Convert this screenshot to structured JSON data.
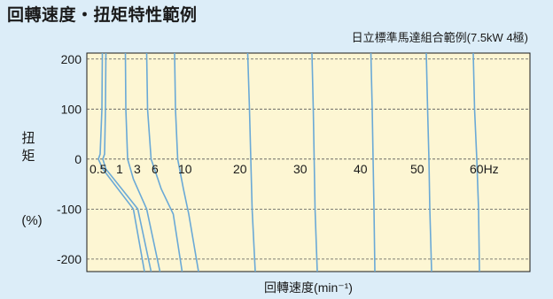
{
  "title": "回轉速度・扭矩特性範例",
  "chart_data": {
    "type": "line",
    "subtitle": "日立標準馬達組合範例(7.5kW 4極)",
    "xlabel": "回轉速度(min⁻¹)",
    "ylabel_chars": [
      "扭",
      "矩"
    ],
    "ylabel_unit": "(%)",
    "ylim": [
      -225,
      212
    ],
    "yticks": [
      200,
      100,
      0,
      -100,
      -200
    ],
    "grid": "horizontal-dashed",
    "frequency_labels": [
      "0.5",
      "1",
      "3",
      "6",
      "10",
      "20",
      "30",
      "40",
      "50",
      "60Hz"
    ],
    "series": [
      {
        "name": "0.5",
        "points": [
          [
            3.5,
            212
          ],
          [
            3.4,
            100
          ],
          [
            3.0,
            10
          ],
          [
            2.6,
            0
          ],
          [
            3.6,
            -20
          ],
          [
            10.5,
            -100
          ],
          [
            13,
            -225
          ]
        ]
      },
      {
        "name": "1",
        "points": [
          [
            4.3,
            212
          ],
          [
            4.2,
            100
          ],
          [
            4.0,
            10
          ],
          [
            3.6,
            0
          ],
          [
            4.3,
            -20
          ],
          [
            11.5,
            -100
          ],
          [
            14.5,
            -225
          ]
        ]
      },
      {
        "name": "3",
        "points": [
          [
            8.7,
            212
          ],
          [
            8.8,
            100
          ],
          [
            9.2,
            0
          ],
          [
            10.5,
            -40
          ],
          [
            13.5,
            -100
          ],
          [
            16.5,
            -225
          ]
        ]
      },
      {
        "name": "6",
        "points": [
          [
            13.5,
            212
          ],
          [
            13.7,
            100
          ],
          [
            14.5,
            0
          ],
          [
            16.8,
            -60
          ],
          [
            19.5,
            -110
          ],
          [
            21.5,
            -225
          ]
        ]
      },
      {
        "name": "10",
        "points": [
          [
            19.8,
            212
          ],
          [
            20.0,
            100
          ],
          [
            20.5,
            0
          ],
          [
            21.8,
            -60
          ],
          [
            23.0,
            -110
          ],
          [
            25.2,
            -225
          ]
        ]
      },
      {
        "name": "20",
        "points": [
          [
            36.3,
            212
          ],
          [
            36.7,
            100
          ],
          [
            37.0,
            0
          ],
          [
            37.3,
            -100
          ],
          [
            38.0,
            -225
          ]
        ]
      },
      {
        "name": "30",
        "points": [
          [
            50.8,
            212
          ],
          [
            51.1,
            100
          ],
          [
            51.3,
            0
          ],
          [
            51.5,
            -100
          ],
          [
            52.0,
            -225
          ]
        ]
      },
      {
        "name": "40",
        "points": [
          [
            64.1,
            212
          ],
          [
            64.4,
            100
          ],
          [
            64.6,
            0
          ],
          [
            64.8,
            -100
          ],
          [
            65.0,
            -225
          ]
        ]
      },
      {
        "name": "50",
        "points": [
          [
            76.6,
            212
          ],
          [
            76.9,
            100
          ],
          [
            77.2,
            0
          ],
          [
            77.4,
            -100
          ],
          [
            77.8,
            -225
          ]
        ]
      },
      {
        "name": "60Hz",
        "points": [
          [
            87.2,
            212
          ],
          [
            87.5,
            100
          ],
          [
            88.0,
            0
          ],
          [
            88.4,
            -100
          ],
          [
            88.6,
            -225
          ]
        ]
      }
    ],
    "colors": {
      "background": "#dcedf8",
      "plot_area": "#fdf6d3",
      "line": "#6aa9d6",
      "grid": "#555555",
      "frame": "#1a1a1a"
    }
  }
}
